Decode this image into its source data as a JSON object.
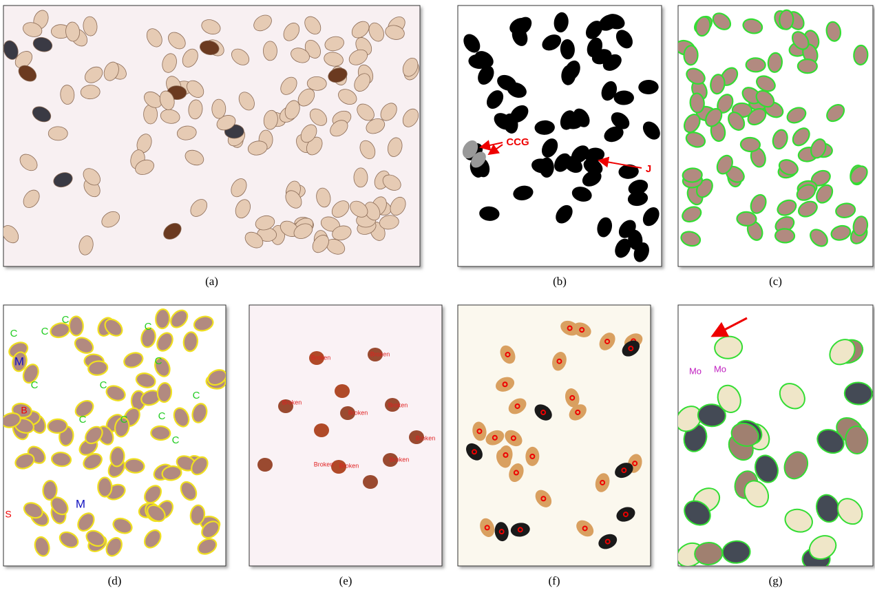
{
  "panels": [
    {
      "label": "(a)"
    },
    {
      "label": "(b)",
      "annotations": [
        "CCG",
        "J"
      ]
    },
    {
      "label": "(c)"
    },
    {
      "label": "(d)",
      "annotations": [
        "M",
        "B",
        "M",
        "S",
        "C",
        "C",
        "C",
        "C",
        "C",
        "C",
        "C",
        "C",
        "C",
        "C",
        "C",
        "C"
      ]
    },
    {
      "label": "(e)",
      "annotations": [
        "Broken",
        "Broken",
        "Broken",
        "Broken",
        "Broken",
        "Broken",
        "Broken",
        "Broken",
        "Broken"
      ]
    },
    {
      "label": "(f)"
    },
    {
      "label": "(g)",
      "annotations": [
        "Mo",
        "Mo"
      ]
    }
  ]
}
